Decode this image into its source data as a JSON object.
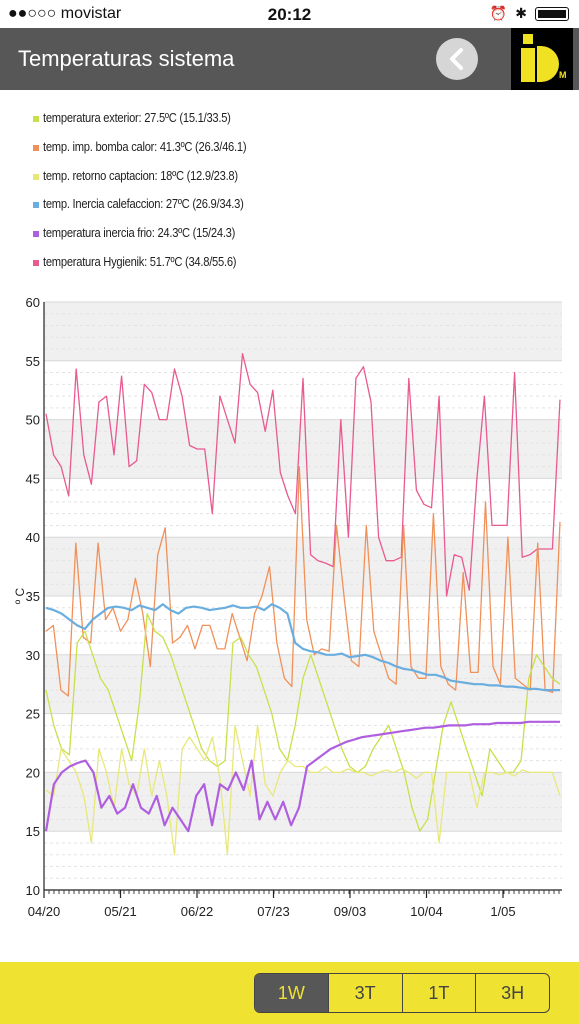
{
  "status": {
    "carrier": "●●○○○ movistar",
    "time": "20:12"
  },
  "header": {
    "title": "Temperaturas sistema"
  },
  "legend": [
    {
      "label": "temperatura exterior: 27.5ºC (15.1/33.5)",
      "color": "#c8e04a"
    },
    {
      "label": "temp. imp. bomba calor: 41.3ºC (26.3/46.1)",
      "color": "#f0915a"
    },
    {
      "label": "temp. retorno captacion: 18ºC (12.9/23.8)",
      "color": "#e8e87a"
    },
    {
      "label": "temp. Inercia calefaccion: 27ºC (26.9/34.3)",
      "color": "#6aaee0"
    },
    {
      "label": "temperatura inercia frio: 24.3ºC (15/24.3)",
      "color": "#b05ee0"
    },
    {
      "label": "temperatura Hygienik: 51.7ºC (34.8/55.6)",
      "color": "#e85a90"
    }
  ],
  "range_buttons": [
    "1W",
    "3T",
    "1T",
    "3H"
  ],
  "active_range": "1W",
  "chart_data": {
    "type": "line",
    "ylabel": "º C",
    "ylim": [
      10,
      60
    ],
    "yticks": [
      "10",
      "15",
      "20",
      "25",
      "30",
      "35",
      "40",
      "45",
      "50",
      "55",
      "60"
    ],
    "xticks": [
      "04/20",
      "05/21",
      "06/22",
      "07/23",
      "09/03",
      "10/04",
      "1/05"
    ],
    "series": [
      {
        "name": "temperatura Hygienik",
        "color": "#e85a90",
        "values": [
          50.5,
          47,
          46,
          43.5,
          54.3,
          47,
          44.5,
          51.5,
          52,
          47,
          53.7,
          46,
          46.5,
          53,
          52.3,
          50,
          50,
          54.3,
          52,
          47.8,
          47.5,
          47.5,
          42,
          52,
          50,
          48,
          55.6,
          53,
          52.3,
          49,
          52.5,
          45.5,
          43.5,
          42,
          53.5,
          38.5,
          38,
          37.8,
          37.5,
          50,
          40,
          53.5,
          54.5,
          51.5,
          40,
          38,
          38,
          38.3,
          53.5,
          44,
          42.8,
          42.5,
          52,
          35,
          38.5,
          38.3,
          35.5,
          45,
          52,
          41,
          41,
          41,
          54,
          38.3,
          38.5,
          39,
          39,
          39,
          51.7
        ]
      },
      {
        "name": "temp. imp. bomba calor",
        "color": "#f0915a",
        "values": [
          32,
          32.5,
          27,
          26.5,
          39.5,
          31.5,
          31,
          39.5,
          33,
          34,
          32,
          33,
          36.5,
          33.5,
          29,
          38.5,
          40.8,
          31,
          31.5,
          32.5,
          30.5,
          32.5,
          32.5,
          30.5,
          30.5,
          33.5,
          31.5,
          29.5,
          33.5,
          35,
          37.5,
          31,
          28,
          27.3,
          46,
          33,
          30,
          30.5,
          30.3,
          41,
          35,
          29.5,
          29,
          41,
          32,
          30,
          28,
          27.5,
          41,
          29,
          28,
          28,
          42,
          29,
          27.5,
          27,
          37,
          28.5,
          28.5,
          43,
          29,
          27.5,
          40,
          28,
          27.5,
          27,
          39.5,
          27,
          26.8,
          41.3
        ]
      },
      {
        "name": "temperatura exterior",
        "color": "#c8e04a",
        "values": [
          27,
          24,
          22,
          21.5,
          31,
          32,
          30,
          28,
          27,
          25,
          23,
          21,
          26,
          33.5,
          32,
          31.5,
          30,
          28,
          26,
          24,
          22,
          21,
          20.5,
          21,
          31,
          31.5,
          30,
          29,
          27,
          25,
          22,
          21,
          24,
          28,
          30,
          28,
          26,
          24,
          22,
          20.5,
          20,
          20.5,
          22,
          23,
          24,
          22,
          20,
          17,
          15,
          16,
          20,
          24,
          26,
          24,
          22,
          20,
          18,
          22,
          21,
          20,
          20,
          21,
          28,
          30,
          29,
          28,
          27.5
        ]
      },
      {
        "name": "temp. retorno captacion",
        "color": "#e8e87a",
        "values": [
          18.5,
          18,
          22,
          21,
          20,
          18,
          14,
          22,
          20,
          17,
          22,
          19,
          18,
          22,
          18,
          21,
          18,
          13,
          22,
          23,
          22,
          21,
          23,
          19.5,
          13,
          24,
          21,
          18,
          24,
          19,
          18,
          20,
          21,
          20.5,
          20.5,
          20,
          20,
          20.5,
          20,
          20,
          20.3,
          20,
          20,
          19.7,
          20,
          20.2,
          20,
          20.3,
          20,
          19.5,
          20,
          20,
          14,
          20,
          20,
          20,
          20,
          17,
          20,
          20,
          19.8,
          20,
          19.7,
          20.2,
          20,
          20,
          20,
          20,
          18
        ]
      },
      {
        "name": "temp. Inercia calefaccion",
        "color": "#6aaee0",
        "values": [
          34,
          33.8,
          33.5,
          33,
          32.5,
          32.2,
          33,
          33.5,
          34,
          34.1,
          34,
          33.8,
          34.2,
          34,
          33.8,
          34.3,
          33.8,
          33.5,
          34,
          34.1,
          34,
          33.8,
          33.9,
          34,
          34.2,
          34,
          34,
          34.1,
          33.8,
          34.3,
          34,
          33.5,
          31,
          30.5,
          30.3,
          30.2,
          30,
          30,
          30.1,
          29.8,
          29.9,
          30,
          29.8,
          29.5,
          29.3,
          29,
          28.8,
          28.7,
          28.5,
          28.3,
          28.3,
          28.1,
          27.8,
          27.7,
          27.6,
          27.5,
          27.5,
          27.4,
          27.4,
          27.3,
          27.3,
          27.2,
          27.1,
          27.1,
          27,
          27,
          27
        ]
      },
      {
        "name": "temperatura inercia frio",
        "color": "#b05ee0",
        "values": [
          15,
          19,
          20,
          20.5,
          20.8,
          21,
          20,
          17,
          18,
          16.5,
          17,
          19,
          17,
          16.5,
          18,
          15.5,
          17,
          16,
          15,
          18,
          19,
          15.5,
          19,
          18.5,
          20,
          18.5,
          21,
          16,
          17.5,
          16,
          17.5,
          15.5,
          17,
          20.5,
          21,
          21.5,
          22,
          22.3,
          22.6,
          22.8,
          23,
          23.1,
          23.2,
          23.3,
          23.4,
          23.5,
          23.6,
          23.7,
          23.8,
          23.8,
          23.9,
          24,
          24,
          24,
          24.1,
          24.1,
          24.1,
          24.2,
          24.2,
          24.2,
          24.2,
          24.3,
          24.3,
          24.3,
          24.3,
          24.3
        ]
      }
    ]
  }
}
